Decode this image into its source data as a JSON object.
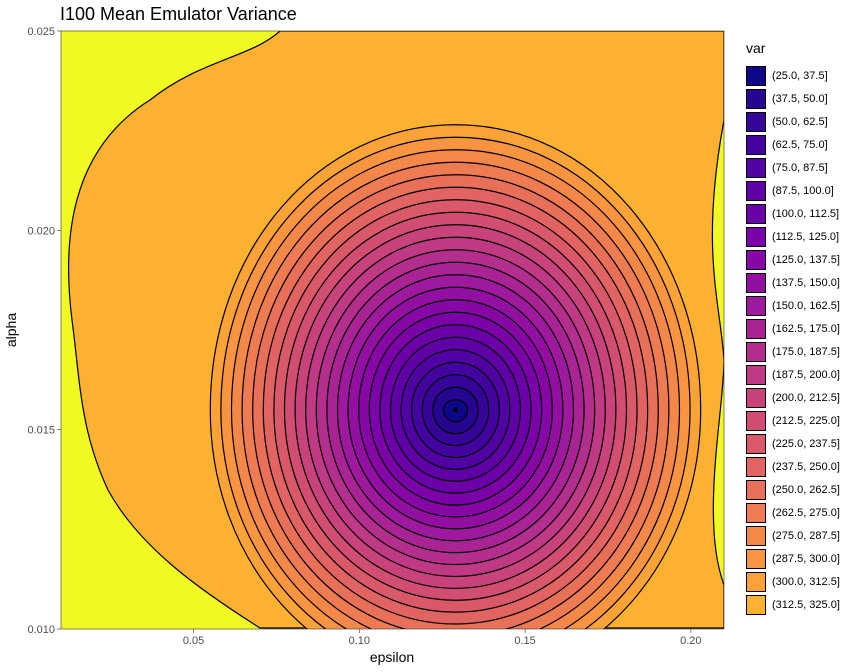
{
  "chart_data": {
    "type": "contour",
    "title": "I100 Mean Emulator Variance",
    "xlabel": "epsilon",
    "ylabel": "alpha",
    "xlim": [
      0.01,
      0.21
    ],
    "ylim": [
      0.01,
      0.025
    ],
    "x_ticks": [
      0.05,
      0.1,
      0.15,
      0.2
    ],
    "x_tick_labels": [
      "0.05",
      "0.10",
      "0.15",
      "0.20"
    ],
    "y_ticks": [
      0.01,
      0.015,
      0.02,
      0.025
    ],
    "y_tick_labels": [
      "0.010",
      "0.015",
      "0.020",
      "0.025"
    ],
    "minimum_point": {
      "x": 0.129,
      "y": 0.0155
    },
    "legend": {
      "title": "var",
      "placement": "right",
      "levels": [
        {
          "label": "(25.0, 37.5]",
          "color": "#0d0887"
        },
        {
          "label": "(37.5, 50.0]",
          "color": "#260591"
        },
        {
          "label": "(50.0, 62.5]",
          "color": "#350498"
        },
        {
          "label": "(62.5, 75.0]",
          "color": "#43039e"
        },
        {
          "label": "(75.0, 87.5]",
          "color": "#5102a3"
        },
        {
          "label": "(87.5, 100.0]",
          "color": "#5f00a7"
        },
        {
          "label": "(100.0, 112.5]",
          "color": "#6c00a8"
        },
        {
          "label": "(112.5, 125.0]",
          "color": "#7a02a8"
        },
        {
          "label": "(125.0, 137.5]",
          "color": "#8606a6"
        },
        {
          "label": "(137.5, 150.0]",
          "color": "#930fa1"
        },
        {
          "label": "(150.0, 162.5]",
          "color": "#9e199d"
        },
        {
          "label": "(162.5, 175.0]",
          "color": "#a92395"
        },
        {
          "label": "(175.0, 187.5]",
          "color": "#b42e8d"
        },
        {
          "label": "(187.5, 200.0]",
          "color": "#bf3984"
        },
        {
          "label": "(200.0, 212.5]",
          "color": "#c8437b"
        },
        {
          "label": "(212.5, 225.0]",
          "color": "#d14e72"
        },
        {
          "label": "(225.0, 237.5]",
          "color": "#d9586a"
        },
        {
          "label": "(237.5, 250.0]",
          "color": "#e16462"
        },
        {
          "label": "(250.0, 262.5]",
          "color": "#e86f58"
        },
        {
          "label": "(262.5, 275.0]",
          "color": "#ee7b51"
        },
        {
          "label": "(275.0, 287.5]",
          "color": "#f48849"
        },
        {
          "label": "(287.5, 300.0]",
          "color": "#f99540"
        },
        {
          "label": "(300.0, 312.5]",
          "color": "#fca338"
        },
        {
          "label": "(312.5, 325.0]",
          "color": "#fdb130"
        }
      ]
    }
  }
}
